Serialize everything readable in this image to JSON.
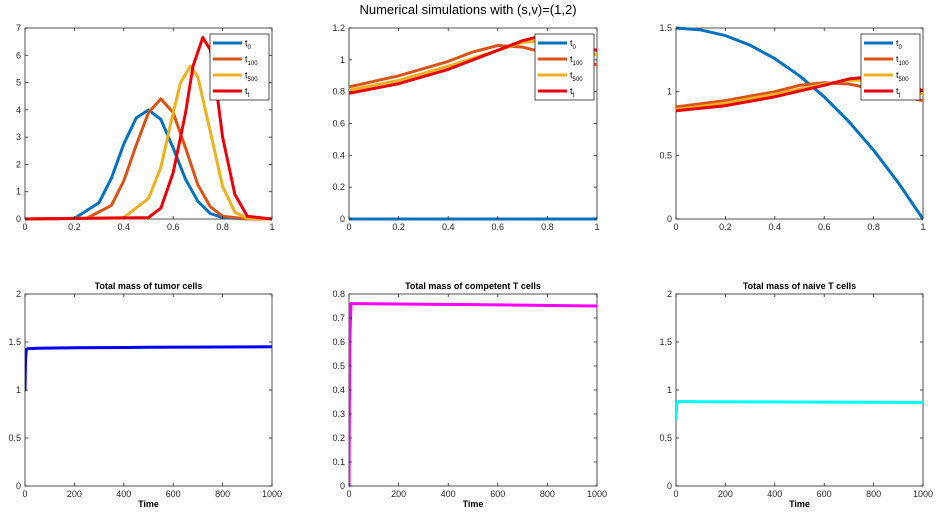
{
  "figure": {
    "title": "Numerical simulations with (s,v)=(1,2)"
  },
  "legend_entries": [
    {
      "base": "t",
      "sub": "0",
      "color": "#0072BD"
    },
    {
      "base": "t",
      "sub": "100",
      "color": "#D95319"
    },
    {
      "base": "t",
      "sub": "500",
      "color": "#EDB120"
    },
    {
      "base": "t",
      "sub": "f",
      "color": "#E8000B"
    }
  ],
  "chart_data": [
    {
      "type": "line",
      "title": "",
      "xlabel": "",
      "ylabel": "",
      "xlim": [
        0,
        1
      ],
      "ylim": [
        0,
        7
      ],
      "xticks": [
        0,
        0.2,
        0.4,
        0.6,
        0.8,
        1
      ],
      "yticks": [
        0,
        1,
        2,
        3,
        4,
        5,
        6,
        7
      ],
      "legend": "top-right",
      "grid": false,
      "series": [
        {
          "name": "t0",
          "color": "#0072BD",
          "x": [
            0,
            0.2,
            0.3,
            0.35,
            0.4,
            0.45,
            0.5,
            0.55,
            0.6,
            0.65,
            0.7,
            0.75,
            0.8,
            0.9,
            1
          ],
          "y": [
            0,
            0.02,
            0.6,
            1.5,
            2.75,
            3.7,
            4.0,
            3.65,
            2.6,
            1.45,
            0.65,
            0.2,
            0.05,
            0,
            0
          ]
        },
        {
          "name": "t100",
          "color": "#D95319",
          "x": [
            0,
            0.25,
            0.35,
            0.4,
            0.45,
            0.5,
            0.55,
            0.6,
            0.65,
            0.7,
            0.75,
            0.8,
            0.9,
            1
          ],
          "y": [
            0,
            0.03,
            0.5,
            1.4,
            2.7,
            3.9,
            4.4,
            3.9,
            2.6,
            1.25,
            0.45,
            0.1,
            0,
            0
          ]
        },
        {
          "name": "t500",
          "color": "#EDB120",
          "x": [
            0,
            0.4,
            0.5,
            0.55,
            0.6,
            0.63,
            0.67,
            0.7,
            0.75,
            0.8,
            0.85,
            0.9,
            1
          ],
          "y": [
            0,
            0.05,
            0.75,
            1.9,
            3.9,
            5.0,
            5.6,
            5.2,
            3.2,
            1.2,
            0.25,
            0.02,
            0
          ]
        },
        {
          "name": "tf",
          "color": "#E8000B",
          "x": [
            0,
            0.5,
            0.55,
            0.6,
            0.65,
            0.68,
            0.72,
            0.75,
            0.78,
            0.8,
            0.85,
            0.9,
            1
          ],
          "y": [
            0,
            0.05,
            0.4,
            1.7,
            3.9,
            5.6,
            6.65,
            6.2,
            4.4,
            3.0,
            0.9,
            0.1,
            0
          ]
        }
      ]
    },
    {
      "type": "line",
      "title": "",
      "xlabel": "",
      "ylabel": "",
      "xlim": [
        0,
        1
      ],
      "ylim": [
        0,
        1.2
      ],
      "xticks": [
        0,
        0.2,
        0.4,
        0.6,
        0.8,
        1
      ],
      "yticks": [
        0,
        0.2,
        0.4,
        0.6,
        0.8,
        1,
        1.2
      ],
      "legend": "top-right",
      "grid": false,
      "series": [
        {
          "name": "t0",
          "color": "#0072BD",
          "x": [
            0,
            1
          ],
          "y": [
            0,
            0
          ]
        },
        {
          "name": "t100",
          "color": "#D95319",
          "x": [
            0,
            0.2,
            0.4,
            0.5,
            0.6,
            0.7,
            0.8,
            0.9,
            1
          ],
          "y": [
            0.83,
            0.9,
            0.99,
            1.05,
            1.09,
            1.08,
            1.04,
            1.0,
            0.97
          ]
        },
        {
          "name": "t500",
          "color": "#EDB120",
          "x": [
            0,
            0.2,
            0.4,
            0.6,
            0.7,
            0.8,
            0.9,
            1
          ],
          "y": [
            0.81,
            0.87,
            0.96,
            1.06,
            1.11,
            1.12,
            1.08,
            1.03
          ]
        },
        {
          "name": "tf",
          "color": "#E8000B",
          "x": [
            0,
            0.2,
            0.4,
            0.6,
            0.7,
            0.75,
            0.8,
            0.9,
            1
          ],
          "y": [
            0.79,
            0.85,
            0.94,
            1.06,
            1.12,
            1.14,
            1.13,
            1.09,
            1.06
          ]
        }
      ]
    },
    {
      "type": "line",
      "title": "",
      "xlabel": "",
      "ylabel": "",
      "xlim": [
        0,
        1
      ],
      "ylim": [
        0,
        1.5
      ],
      "xticks": [
        0,
        0.2,
        0.4,
        0.6,
        0.8,
        1
      ],
      "yticks": [
        0,
        0.5,
        1,
        1.5
      ],
      "legend": "top-right",
      "grid": false,
      "series": [
        {
          "name": "t0",
          "color": "#0072BD",
          "x": [
            0,
            0.1,
            0.2,
            0.3,
            0.4,
            0.5,
            0.6,
            0.7,
            0.8,
            0.9,
            1
          ],
          "y": [
            1.5,
            1.485,
            1.44,
            1.365,
            1.26,
            1.125,
            0.96,
            0.765,
            0.54,
            0.285,
            0
          ]
        },
        {
          "name": "t100",
          "color": "#D95319",
          "x": [
            0,
            0.2,
            0.4,
            0.5,
            0.6,
            0.7,
            0.8,
            0.9,
            1
          ],
          "y": [
            0.88,
            0.93,
            1.0,
            1.05,
            1.07,
            1.06,
            1.02,
            0.97,
            0.93
          ]
        },
        {
          "name": "t500",
          "color": "#EDB120",
          "x": [
            0,
            0.2,
            0.4,
            0.6,
            0.7,
            0.8,
            0.9,
            1
          ],
          "y": [
            0.86,
            0.91,
            0.98,
            1.06,
            1.09,
            1.09,
            1.04,
            0.98
          ]
        },
        {
          "name": "tf",
          "color": "#E8000B",
          "x": [
            0,
            0.2,
            0.4,
            0.6,
            0.7,
            0.75,
            0.8,
            0.9,
            1
          ],
          "y": [
            0.85,
            0.89,
            0.96,
            1.05,
            1.1,
            1.11,
            1.1,
            1.06,
            1.01
          ]
        }
      ]
    },
    {
      "type": "line",
      "title": "Total mass of tumor cells",
      "xlabel": "Time",
      "ylabel": "",
      "xlim": [
        0,
        1000
      ],
      "ylim": [
        0,
        2
      ],
      "xticks": [
        0,
        200,
        400,
        600,
        800,
        1000
      ],
      "yticks": [
        0,
        0.5,
        1,
        1.5,
        2
      ],
      "grid": false,
      "series": [
        {
          "color": "#0000FF",
          "x": [
            0,
            2,
            5,
            10,
            50,
            200,
            500,
            1000
          ],
          "y": [
            1.0,
            1.3,
            1.42,
            1.43,
            1.435,
            1.44,
            1.445,
            1.45
          ]
        }
      ]
    },
    {
      "type": "line",
      "title": "Total mass of competent T cells",
      "xlabel": "Time",
      "ylabel": "",
      "xlim": [
        0,
        1000
      ],
      "ylim": [
        0,
        0.8
      ],
      "xticks": [
        0,
        200,
        400,
        600,
        800,
        1000
      ],
      "yticks": [
        0,
        0.1,
        0.2,
        0.3,
        0.4,
        0.5,
        0.6,
        0.7,
        0.8
      ],
      "grid": false,
      "series": [
        {
          "color": "#FF00FF",
          "x": [
            0,
            3,
            8,
            15,
            100,
            500,
            1000
          ],
          "y": [
            0,
            0.6,
            0.76,
            0.76,
            0.759,
            0.756,
            0.75
          ]
        }
      ]
    },
    {
      "type": "line",
      "title": "Total mass of naive T cells",
      "xlabel": "Time",
      "ylabel": "",
      "xlim": [
        0,
        1000
      ],
      "ylim": [
        0,
        2
      ],
      "xticks": [
        0,
        200,
        400,
        600,
        800,
        1000
      ],
      "yticks": [
        0,
        0.5,
        1,
        1.5,
        2
      ],
      "grid": false,
      "series": [
        {
          "color": "#00FFFF",
          "x": [
            0,
            3,
            8,
            15,
            100,
            500,
            1000
          ],
          "y": [
            0.7,
            0.85,
            0.88,
            0.88,
            0.878,
            0.875,
            0.87
          ]
        }
      ]
    }
  ]
}
